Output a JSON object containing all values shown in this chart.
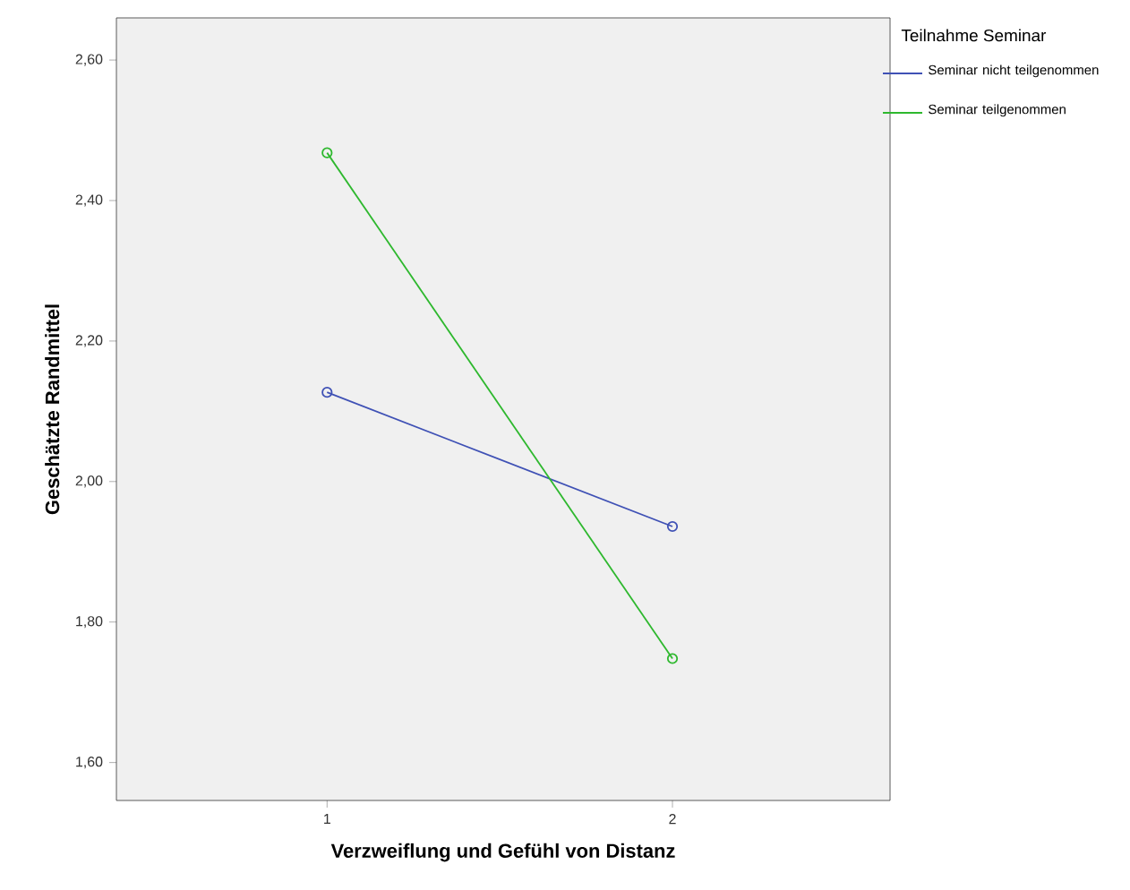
{
  "chart_data": {
    "type": "line",
    "xlabel": "Verzweiflung und Gefühl von Distanz",
    "ylabel": "Geschätzte Randmittel",
    "legend_title": "Teilnahme Seminar",
    "x": [
      1,
      2
    ],
    "xlim": [
      0.39,
      2.63
    ],
    "xticks": [
      1,
      2
    ],
    "series": [
      {
        "name": "Seminar nicht teilgenommen",
        "color": "#3f51b5",
        "values": [
          2.127,
          1.936
        ]
      },
      {
        "name": "Seminar teilgenommen",
        "color": "#2eb82e",
        "values": [
          2.468,
          1.748
        ]
      }
    ],
    "ylim": [
      1.546,
      2.66
    ],
    "yticks": [
      {
        "value": 1.6,
        "label": "1,60"
      },
      {
        "value": 1.8,
        "label": "1,80"
      },
      {
        "value": 2.0,
        "label": "2,00"
      },
      {
        "value": 2.2,
        "label": "2,20"
      },
      {
        "value": 2.4,
        "label": "2,40"
      },
      {
        "value": 2.6,
        "label": "2,60"
      }
    ],
    "marker": "circle",
    "line_style": "solid",
    "grid": false,
    "legend": "top right"
  }
}
